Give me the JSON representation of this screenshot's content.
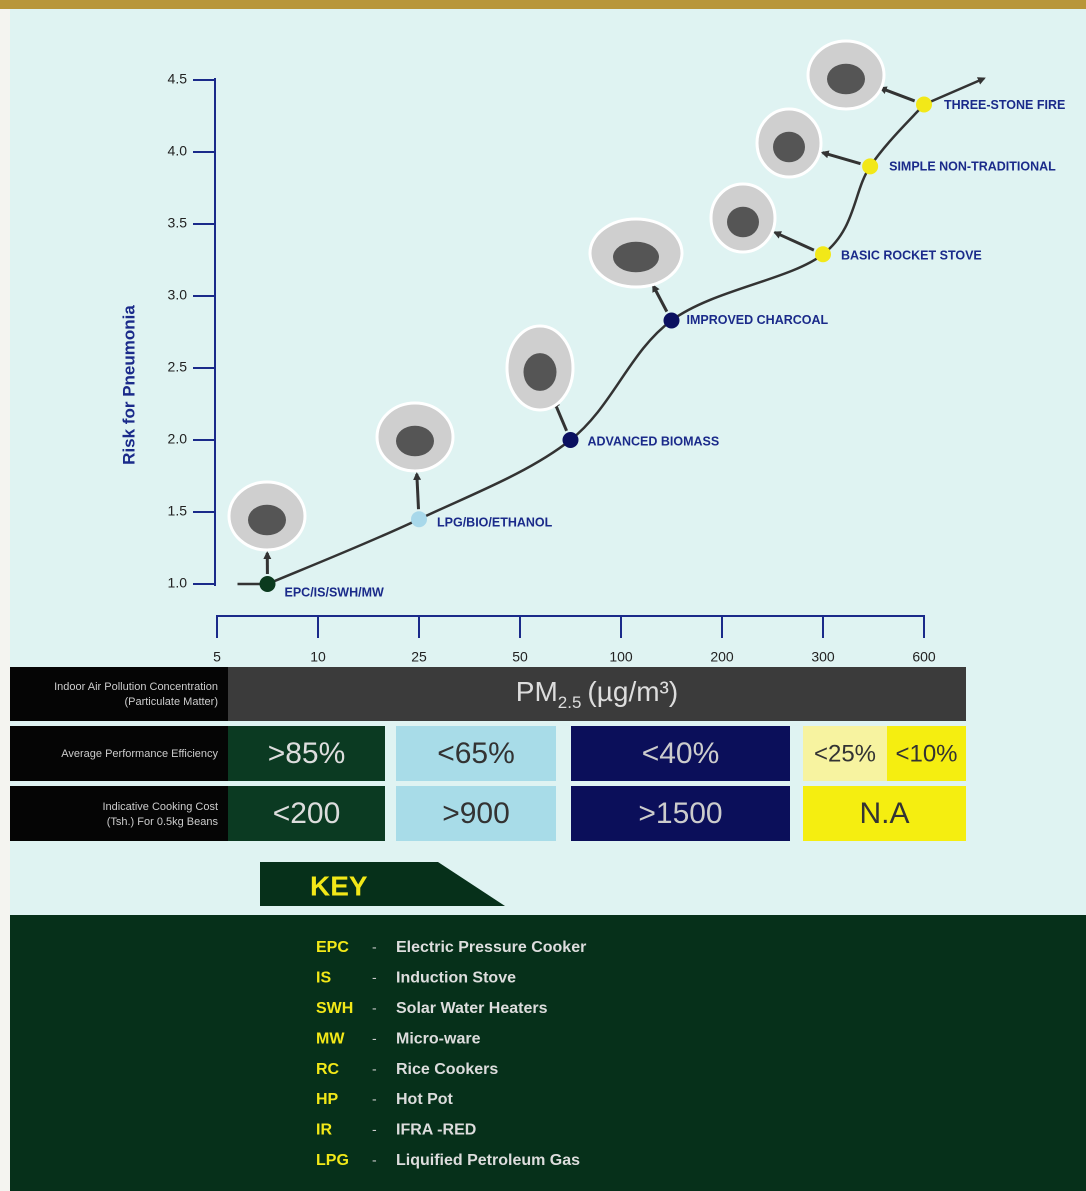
{
  "chart_data": {
    "type": "line",
    "x": [
      7.5,
      25,
      75,
      150,
      300,
      440,
      600
    ],
    "values": [
      1.0,
      1.45,
      2.0,
      2.83,
      3.29,
      3.9,
      4.33
    ],
    "point_labels": [
      "EPC/IS/SWH/MW",
      "LPG/BIO/ETHANOL",
      "ADVANCED BIOMASS",
      "IMPROVED CHARCOAL",
      "BASIC ROCKET STOVE",
      "SIMPLE NON-TRADITIONAL",
      "THREE-STONE FIRE"
    ],
    "point_colors": [
      "#0b3a1e",
      "#a8d8ea",
      "#0b1060",
      "#0b1060",
      "#f2e818",
      "#f2e818",
      "#f2e818"
    ],
    "color": "#333333",
    "ylabel": "Risk for Pneumonia",
    "xlim": [
      5,
      600
    ],
    "xticks": [
      5,
      10,
      25,
      50,
      100,
      200,
      300,
      600
    ],
    "ylim": [
      1,
      4.5
    ],
    "yticks": [
      {
        "value": 1,
        "label": "1.0"
      },
      1.5,
      {
        "value": 2,
        "label": "2.0"
      },
      2.5,
      {
        "value": 3,
        "label": "3.0"
      },
      3.5,
      {
        "value": 4,
        "label": "4.0"
      },
      4.5
    ]
  },
  "table": {
    "header": {
      "label": "Indoor Air Pollution Concentration (Particulate Matter)",
      "pm": "PM",
      "sub": "2.5",
      "unit": "(µg/m³)"
    },
    "rows": [
      {
        "label": "Average Performance Efficiency",
        "cells": [
          ">85%",
          "<65%",
          "<40%",
          "<25%",
          "<10%"
        ]
      },
      {
        "label": "Indicative Cooking Cost (Tsh.) For 0.5kg Beans",
        "cells": [
          "<200",
          ">900",
          ">1500",
          "N.A"
        ]
      }
    ]
  },
  "key": {
    "title": "KEY",
    "items": [
      {
        "abbr": "EPC",
        "text": "Electric Pressure Cooker"
      },
      {
        "abbr": "IS",
        "text": "Induction Stove"
      },
      {
        "abbr": "SWH",
        "text": "Solar Water Heaters"
      },
      {
        "abbr": "MW",
        "text": "Micro-ware"
      },
      {
        "abbr": "RC",
        "text": "Rice Cookers"
      },
      {
        "abbr": "HP",
        "text": "Hot Pot"
      },
      {
        "abbr": "IR",
        "text": "IFRA -RED"
      },
      {
        "abbr": "LPG",
        "text": "Liquified Petroleum Gas"
      }
    ]
  }
}
